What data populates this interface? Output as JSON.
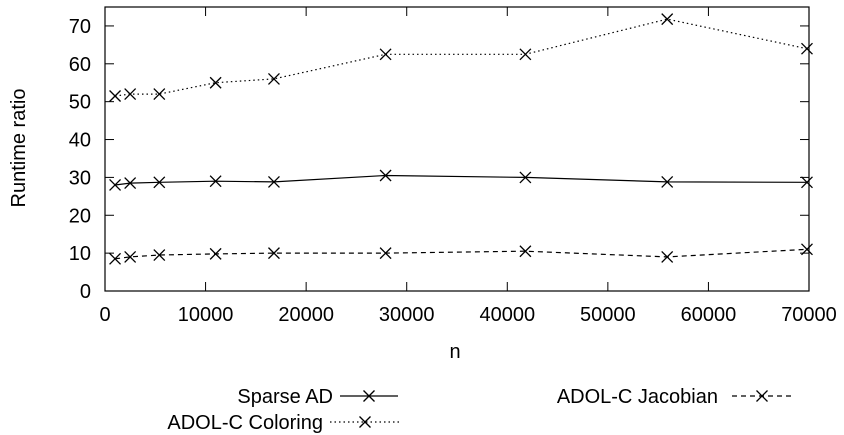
{
  "chart_data": {
    "type": "line",
    "title": "",
    "xlabel": "n",
    "ylabel": "Runtime ratio",
    "xlim": [
      0,
      70000
    ],
    "ylim": [
      0,
      75
    ],
    "x_ticks": [
      0,
      10000,
      20000,
      30000,
      40000,
      50000,
      60000,
      70000
    ],
    "y_ticks": [
      0,
      10,
      20,
      30,
      40,
      50,
      60,
      70
    ],
    "grid": false,
    "legend_position": "bottom",
    "series": [
      {
        "name": "Sparse AD",
        "dash": "solid",
        "color": "#000000",
        "x": [
          1000,
          2500,
          5400,
          11000,
          16800,
          27900,
          41800,
          55900,
          69800
        ],
        "y": [
          28,
          28.5,
          28.7,
          29,
          28.8,
          30.5,
          30,
          28.8,
          28.7
        ]
      },
      {
        "name": "ADOL-C Coloring",
        "dash": "dotted",
        "color": "#000000",
        "x": [
          1000,
          2500,
          5400,
          11000,
          16800,
          27900,
          41800,
          55900,
          69800
        ],
        "y": [
          51.5,
          52,
          52,
          55,
          56,
          62.5,
          62.5,
          71.8,
          64
        ]
      },
      {
        "name": "ADOL-C Jacobian",
        "dash": "dashed",
        "color": "#000000",
        "x": [
          1000,
          2500,
          5400,
          11000,
          16800,
          27900,
          41800,
          55900,
          69800
        ],
        "y": [
          8.5,
          9,
          9.5,
          9.8,
          10,
          10,
          10.5,
          9,
          11
        ]
      }
    ]
  }
}
